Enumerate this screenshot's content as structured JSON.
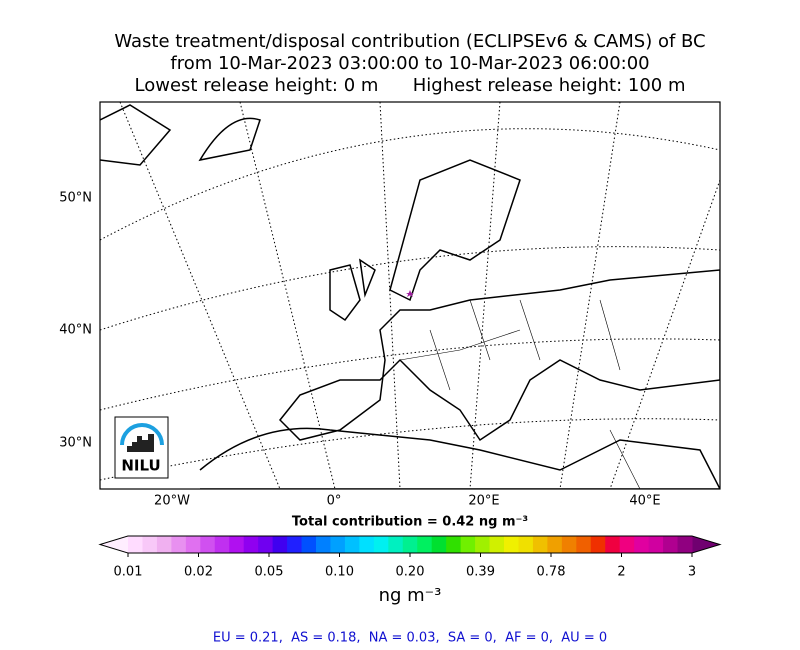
{
  "title": {
    "lines": [
      "Waste treatment/disposal contribution (ECLIPSEv6 & CAMS) of BC",
      "from 10-Mar-2023 03:00:00 to 10-Mar-2023 06:00:00",
      "Lowest release height: 0 m      Highest release height: 100 m"
    ]
  },
  "map": {
    "lat_labels": [
      "50°N",
      "40°N",
      "30°N"
    ],
    "lon_labels": [
      "20°W",
      "0°",
      "20°E",
      "40°E"
    ],
    "logo": "NILU"
  },
  "total": "Total contribution = 0.42 ng m⁻³",
  "colorbar": {
    "ticks": [
      "0.01",
      "0.02",
      "0.05",
      "0.10",
      "0.20",
      "0.39",
      "0.78",
      "2",
      "3"
    ],
    "unit": "ng m⁻³",
    "colors": [
      "#ffeeff",
      "#ffdcff",
      "#f8c8f8",
      "#f0b0f0",
      "#e890f0",
      "#e070f0",
      "#d050f0",
      "#c030f0",
      "#b010f0",
      "#9000f0",
      "#7000f0",
      "#4000f0",
      "#2020ff",
      "#0050ff",
      "#0080ff",
      "#00a0ff",
      "#00c0ff",
      "#00e0ff",
      "#00f0f0",
      "#00f0c0",
      "#00f090",
      "#00f060",
      "#00e030",
      "#30e000",
      "#70f000",
      "#a0f000",
      "#d0f000",
      "#f0f000",
      "#f0e000",
      "#f0c000",
      "#f0a000",
      "#f08000",
      "#f06000",
      "#f03000",
      "#f00040",
      "#f00080",
      "#e000a0",
      "#d000a0",
      "#b00090",
      "#900080",
      "#700070"
    ]
  },
  "regions": "EU = 0.21,  AS = 0.18,  NA = 0.03,  SA = 0,  AF = 0,  AU = 0"
}
